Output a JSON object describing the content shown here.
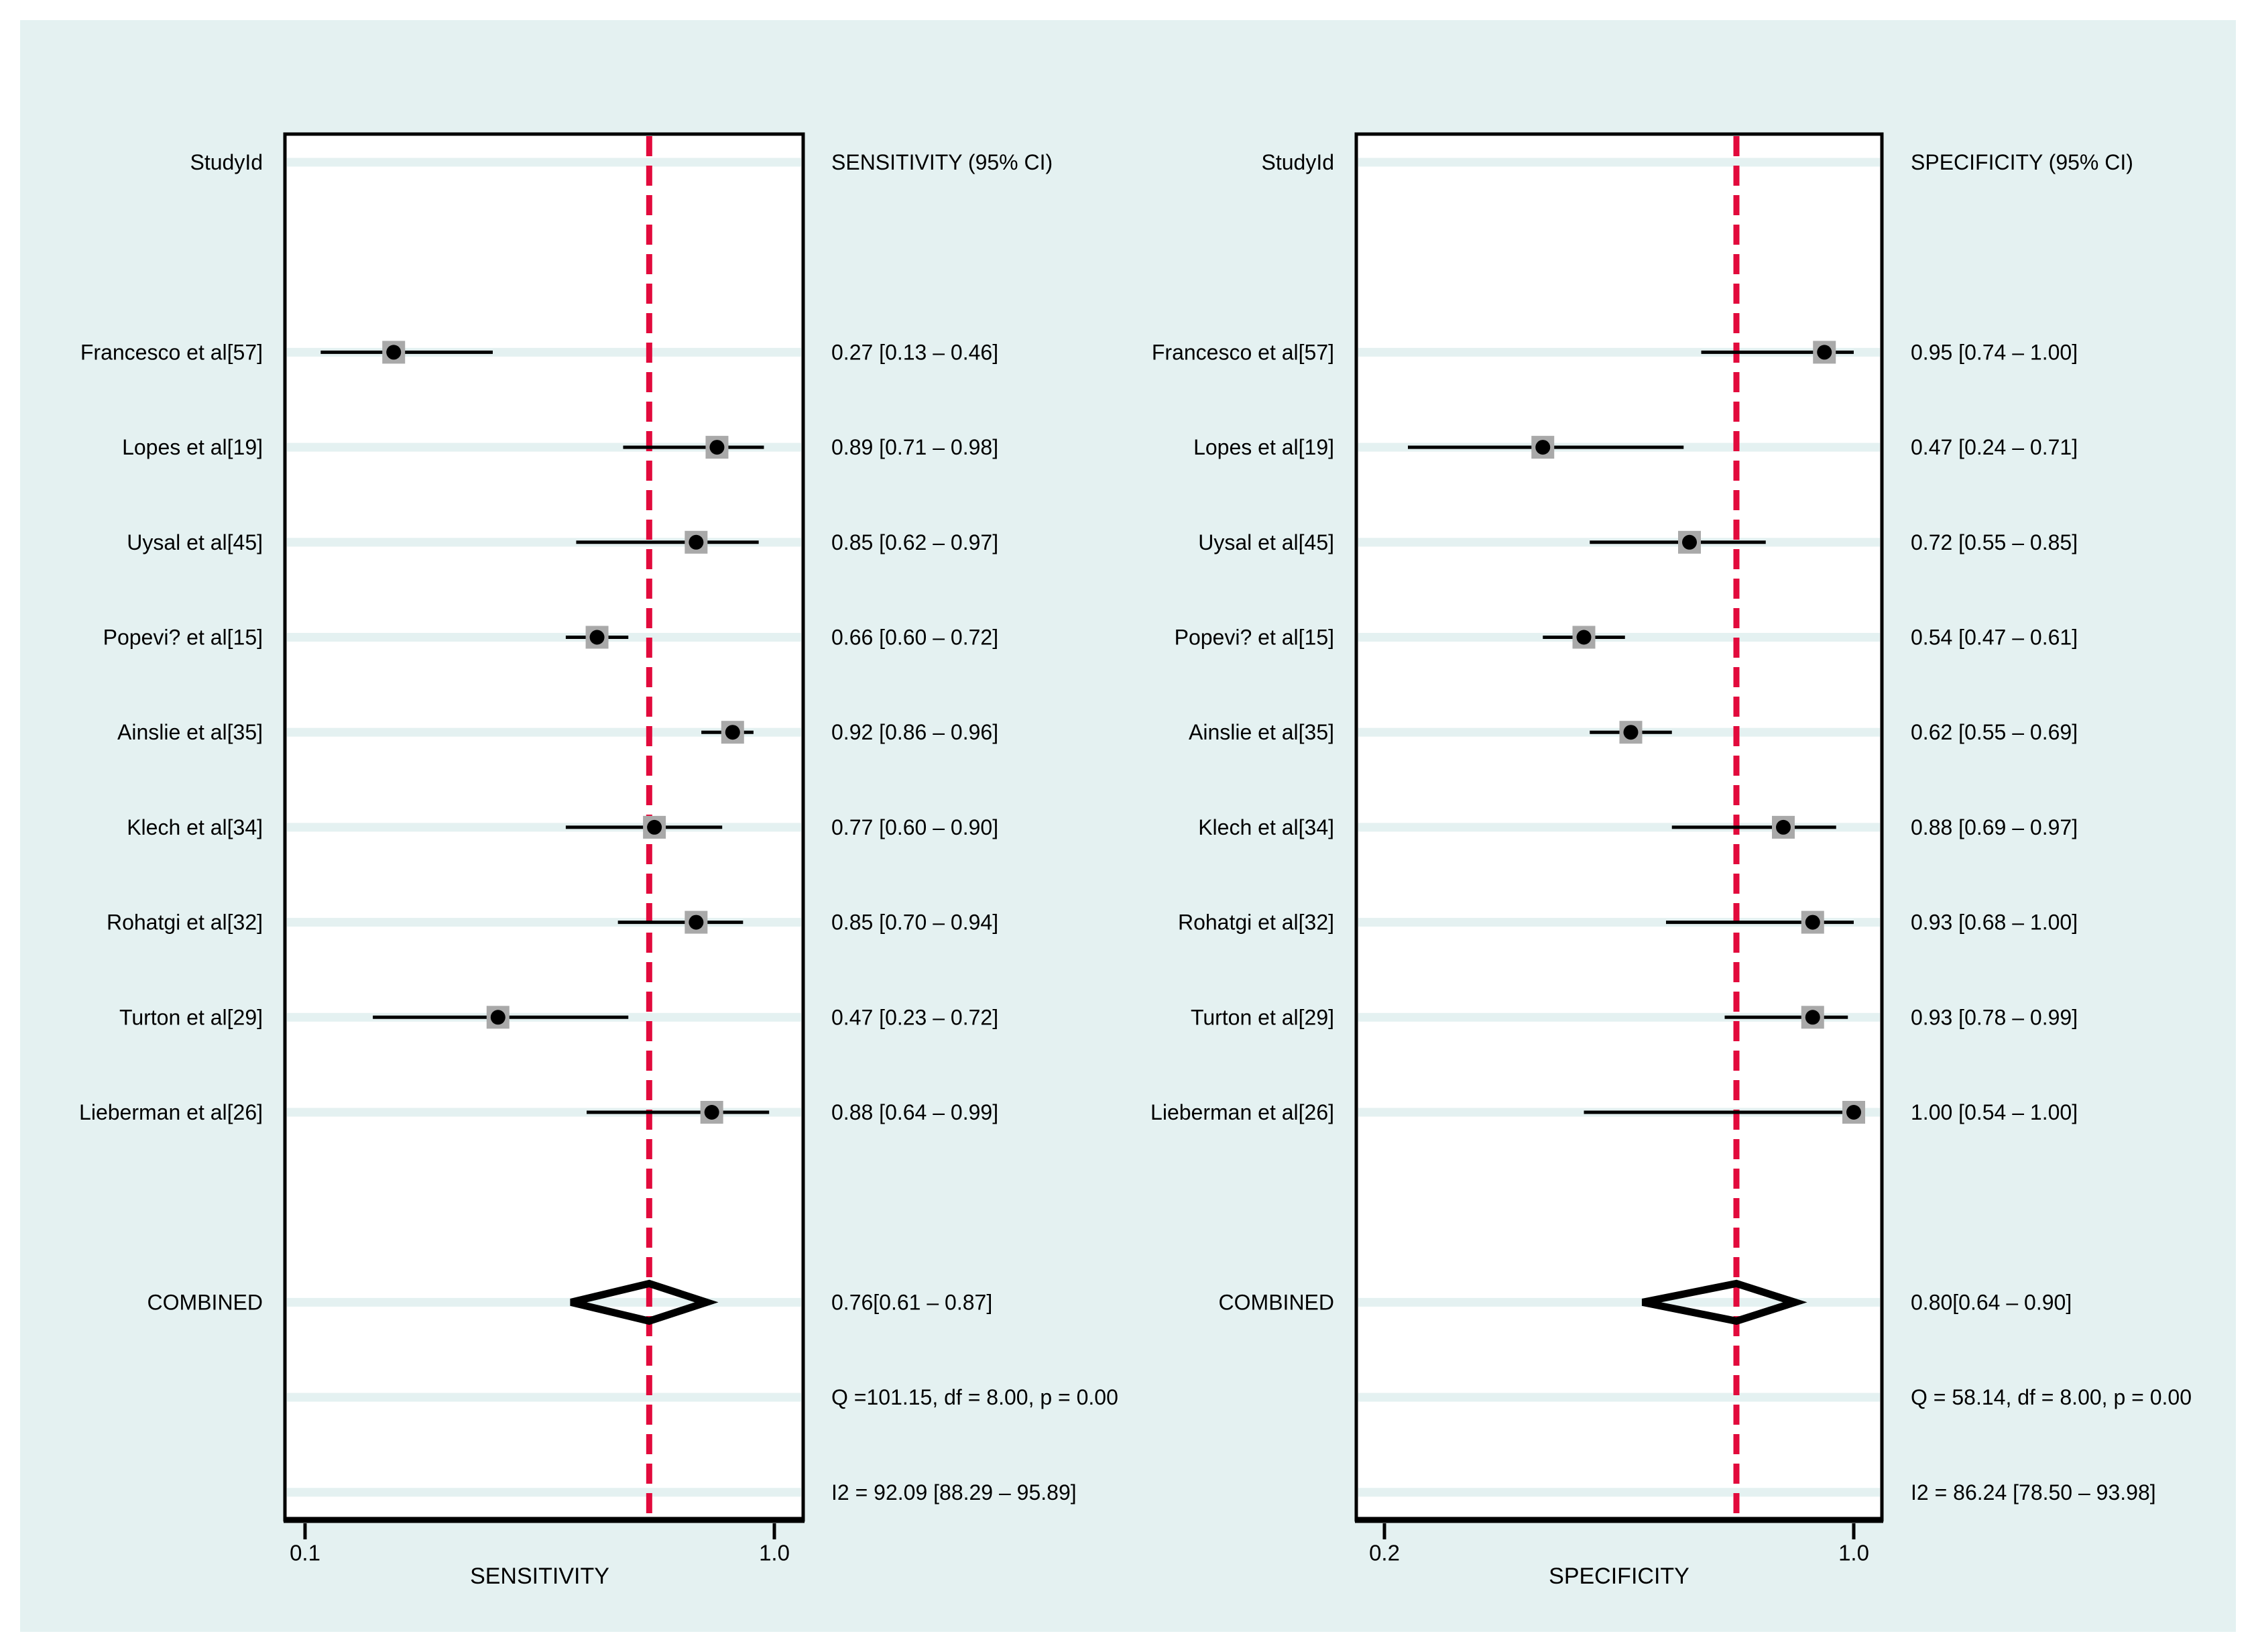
{
  "chart_data": {
    "type": "forest",
    "description": "Paired forest plot of sensitivity and specificity with 95% confidence intervals",
    "colors": {
      "page_background": "#ffffff",
      "figure_background": "#e4f1f1",
      "panel_fill": "#ffffff",
      "row_stripe": "#e4f1f1",
      "reference_line": "#e20a3c",
      "marker_square": "#a9a9a9",
      "marker_dot": "#000000",
      "ci_line": "#000000",
      "border": "#000000",
      "text": "#000000"
    },
    "layout_hints": {
      "axis_scale": "linear",
      "grid": "row-stripes",
      "reference_line_style": "dashed-vertical-at-combined-estimate",
      "legend": "none"
    },
    "panels": [
      {
        "id": "sensitivity",
        "header_left": "StudyId",
        "header_right": "SENSITIVITY (95% CI)",
        "axis": {
          "min": 0.1,
          "max": 1.0,
          "ticks": [
            0.1,
            1.0
          ],
          "tick_labels": [
            "0.1",
            "1.0"
          ],
          "label": "SENSITIVITY"
        },
        "ref_line": 0.76,
        "studies": [
          {
            "label": "Francesco et al[57]",
            "est": 0.27,
            "lo": 0.13,
            "hi": 0.46,
            "ci_text": "0.27 [0.13 – 0.46]"
          },
          {
            "label": "Lopes et al[19]",
            "est": 0.89,
            "lo": 0.71,
            "hi": 0.98,
            "ci_text": "0.89 [0.71 – 0.98]"
          },
          {
            "label": "Uysal et al[45]",
            "est": 0.85,
            "lo": 0.62,
            "hi": 0.97,
            "ci_text": "0.85 [0.62 – 0.97]"
          },
          {
            "label": "Popevi? et al[15]",
            "est": 0.66,
            "lo": 0.6,
            "hi": 0.72,
            "ci_text": "0.66 [0.60 – 0.72]"
          },
          {
            "label": "Ainslie et al[35]",
            "est": 0.92,
            "lo": 0.86,
            "hi": 0.96,
            "ci_text": "0.92 [0.86 – 0.96]"
          },
          {
            "label": "Klech et al[34]",
            "est": 0.77,
            "lo": 0.6,
            "hi": 0.9,
            "ci_text": "0.77 [0.60 – 0.90]"
          },
          {
            "label": "Rohatgi et al[32]",
            "est": 0.85,
            "lo": 0.7,
            "hi": 0.94,
            "ci_text": "0.85 [0.70 – 0.94]"
          },
          {
            "label": "Turton et al[29]",
            "est": 0.47,
            "lo": 0.23,
            "hi": 0.72,
            "ci_text": "0.47 [0.23 – 0.72]"
          },
          {
            "label": "Lieberman et al[26]",
            "est": 0.88,
            "lo": 0.64,
            "hi": 0.99,
            "ci_text": "0.88 [0.64 – 0.99]"
          }
        ],
        "combined": {
          "label": "COMBINED",
          "est": 0.76,
          "lo": 0.61,
          "hi": 0.87,
          "ci_text": "0.76[0.61 – 0.87]"
        },
        "q_text": "Q =101.15, df = 8.00, p =  0.00",
        "i2_text": "I2 = 92.09 [88.29 – 95.89]"
      },
      {
        "id": "specificity",
        "header_left": "StudyId",
        "header_right": "SPECIFICITY (95% CI)",
        "axis": {
          "min": 0.2,
          "max": 1.0,
          "ticks": [
            0.2,
            1.0
          ],
          "tick_labels": [
            "0.2",
            "1.0"
          ],
          "label": "SPECIFICITY"
        },
        "ref_line": 0.8,
        "studies": [
          {
            "label": "Francesco et al[57]",
            "est": 0.95,
            "lo": 0.74,
            "hi": 1.0,
            "ci_text": "0.95 [0.74 – 1.00]"
          },
          {
            "label": "Lopes et al[19]",
            "est": 0.47,
            "lo": 0.24,
            "hi": 0.71,
            "ci_text": "0.47 [0.24 – 0.71]"
          },
          {
            "label": "Uysal et al[45]",
            "est": 0.72,
            "lo": 0.55,
            "hi": 0.85,
            "ci_text": "0.72 [0.55 – 0.85]"
          },
          {
            "label": "Popevi? et al[15]",
            "est": 0.54,
            "lo": 0.47,
            "hi": 0.61,
            "ci_text": "0.54 [0.47 – 0.61]"
          },
          {
            "label": "Ainslie et al[35]",
            "est": 0.62,
            "lo": 0.55,
            "hi": 0.69,
            "ci_text": "0.62 [0.55 – 0.69]"
          },
          {
            "label": "Klech et al[34]",
            "est": 0.88,
            "lo": 0.69,
            "hi": 0.97,
            "ci_text": "0.88 [0.69 – 0.97]"
          },
          {
            "label": "Rohatgi et al[32]",
            "est": 0.93,
            "lo": 0.68,
            "hi": 1.0,
            "ci_text": "0.93 [0.68 – 1.00]"
          },
          {
            "label": "Turton et al[29]",
            "est": 0.93,
            "lo": 0.78,
            "hi": 0.99,
            "ci_text": "0.93 [0.78 – 0.99]"
          },
          {
            "label": "Lieberman et al[26]",
            "est": 1.0,
            "lo": 0.54,
            "hi": 1.0,
            "ci_text": "1.00 [0.54 – 1.00]"
          }
        ],
        "combined": {
          "label": "COMBINED",
          "est": 0.8,
          "lo": 0.64,
          "hi": 0.9,
          "ci_text": "0.80[0.64 – 0.90]"
        },
        "q_text": "Q = 58.14, df = 8.00, p =  0.00",
        "i2_text": "I2 = 86.24 [78.50 – 93.98]"
      }
    ]
  }
}
